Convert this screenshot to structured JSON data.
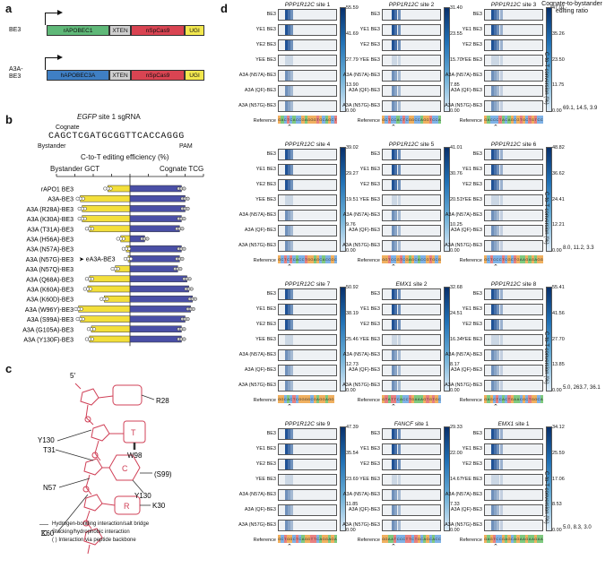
{
  "panel_a": {
    "letter": "a",
    "constructs": [
      {
        "name": "BE3",
        "segments": [
          {
            "label": "rAPOBEC1",
            "color": "#5fb878"
          },
          {
            "label": "XTEN",
            "color": "#cfcfcf"
          },
          {
            "label": "nSpCas9",
            "color": "#d94452"
          },
          {
            "label": "UGI",
            "color": "#f3e84e"
          }
        ]
      },
      {
        "name": "A3A-\nBE3",
        "segments": [
          {
            "label": "hAPOBEC3A",
            "color": "#3f7fc4"
          },
          {
            "label": "XTEN",
            "color": "#cfcfcf"
          },
          {
            "label": "nSpCas9",
            "color": "#d94452"
          },
          {
            "label": "UGI",
            "color": "#f3e84e"
          }
        ]
      }
    ]
  },
  "panel_b": {
    "letter": "b",
    "sgrna_title_italic": "EGFP",
    "sgrna_title_rest": " site 1 sgRNA",
    "sequence": "CAGCTCGATGCGGTTCACCAGGG",
    "cognate_label": "Cognate",
    "bystander_label": "Bystander",
    "pam_label": "PAM",
    "xaxis_title": "C-to-T editing efficiency (%)",
    "left_header": "Bystander GCT",
    "right_header": "Cognate TCG",
    "left_ticks": [
      "40",
      "30",
      "20",
      "10",
      "0"
    ],
    "right_ticks": [
      "10",
      "20",
      "30",
      "40"
    ],
    "highlight_label": "eA3A-BE3",
    "bystander_color": "#f3df3b",
    "cognate_color": "#4a4fa6"
  },
  "chart_data": {
    "type": "bar",
    "categories": [
      "rAPO1 BE3",
      "A3A-BE3",
      "A3A (R28A)-BE3",
      "A3A (K30A)-BE3",
      "A3A (T31A)-BE3",
      "A3A (H56A)-BE3",
      "A3A (N57A)-BE3",
      "A3A (N57G)-BE3",
      "A3A (N57Q)-BE3",
      "A3A (Q68A)-BE3",
      "A3A (K60A)-BE3",
      "A3A (K60D)-BE3",
      "A3A (W96Y)-BE3",
      "A3A (S99A)-BE3",
      "A3A (G105A)-BE3",
      "A3A (Y130F)-BE3"
    ],
    "series": [
      {
        "name": "Bystander GCT",
        "values": [
          12,
          27,
          26,
          26,
          22,
          5,
          2,
          1,
          8,
          22,
          23,
          14,
          28,
          27,
          21,
          22
        ]
      },
      {
        "name": "Cognate TCG",
        "values": [
          28,
          30,
          30,
          28,
          27,
          8,
          28,
          27,
          26,
          31,
          32,
          34,
          33,
          30,
          28,
          28
        ]
      }
    ],
    "xlim": [
      -40,
      40
    ]
  },
  "panel_c": {
    "letter": "c",
    "five_prime": "5′",
    "residues": [
      "R28",
      "Y130",
      "T31",
      "N57",
      "K60",
      "W98",
      "(S99)",
      "Y130",
      "K30"
    ],
    "bases": [
      "T",
      "C",
      "R"
    ],
    "legend": [
      "Hydrogen-bonding interaction/salt bridge",
      "Stacking/hydrophobic interaction",
      "( ) Interaction via peptide backbone"
    ]
  },
  "panel_d": {
    "letter": "d",
    "ratio_header": "Cognate-to-bystander\nediting ratio",
    "conversion_label": "C-to-T conversion (%)",
    "row_labels": [
      "BE3",
      "YE1 BE3",
      "YE2 BE3",
      "YEE BE3",
      "A3A (N57A)-BE3",
      "A3A (QF)-BE3",
      "A3A (N57G)-BE3",
      "Reference"
    ],
    "grid": [
      {
        "ratio": "69.1, 14.5, 3.9",
        "sites": [
          {
            "gene": "PPP1R12C",
            "site": " site 1",
            "max": "55.59",
            "ticks": [
              "41.69",
              "27.79",
              "13.90",
              "0.00"
            ],
            "ref": "GACTCACCGAGGGTGCAGCT"
          },
          {
            "gene": "PPP1R12C",
            "site": " site 2",
            "max": "31.40",
            "ticks": [
              "23.55",
              "15.70",
              "7.85",
              "0.00"
            ],
            "ref": "GCTCCACTCGGCCAGGTCCA"
          },
          {
            "gene": "PPP1R12C",
            "site": " site 3",
            "max": "47.01",
            "ticks": [
              "35.26",
              "23.50",
              "11.75",
              "0.00"
            ],
            "ref": "GACCCTACAGCGTGCTGTCC"
          }
        ]
      },
      {
        "ratio": "8.0, 11.2, 3.3",
        "sites": [
          {
            "gene": "PPP1R12C",
            "site": " site 4",
            "max": "39.02",
            "ticks": [
              "29.27",
              "19.51",
              "9.76",
              "0.00"
            ],
            "ref": "GCTCTCACCTGGAGCACCGC"
          },
          {
            "gene": "PPP1R12C",
            "site": " site 5",
            "max": "41.01",
            "ticks": [
              "30.76",
              "20.51",
              "10.25",
              "0.00"
            ],
            "ref": "GGTCCGTCGAGCACCGTGCG"
          },
          {
            "gene": "PPP1R12C",
            "site": " site 6",
            "max": "48.82",
            "ticks": [
              "36.62",
              "24.41",
              "12.21",
              "0.00"
            ],
            "ref": "GCTCCCTCGCTGAAGAGAGG"
          }
        ]
      },
      {
        "ratio": "5.0, 263.7, 36.1",
        "sites": [
          {
            "gene": "PPP1R12C",
            "site": " site 7",
            "max": "50.92",
            "ticks": [
              "38.19",
              "25.46",
              "12.73",
              "0.00"
            ],
            "ref": "GGCACTCGGGGCGAGGAGG"
          },
          {
            "gene": "EMX1",
            "site": " site 2",
            "max": "32.68",
            "ticks": [
              "24.51",
              "16.34",
              "8.17",
              "0.00"
            ],
            "ref": "GTATTCACCTGAAAGTGTGC"
          },
          {
            "gene": "PPP1R12C",
            "site": " site 8",
            "max": "55.41",
            "ticks": [
              "41.56",
              "27.70",
              "13.85",
              "0.00"
            ],
            "ref": "GAGCTCACTGAACGCTGGCA"
          }
        ]
      },
      {
        "ratio": "5.0, 8.3, 3.0",
        "sites": [
          {
            "gene": "PPP1R12C",
            "site": " site 9",
            "max": "47.39",
            "ticks": [
              "35.54",
              "23.69",
              "11.85",
              "0.00"
            ],
            "ref": "GCTGGCTCAGGTTCAGGAGA"
          },
          {
            "gene": "FANCF",
            "site": " site 1",
            "max": "29.33",
            "ticks": [
              "22.00",
              "14.67",
              "7.33",
              "0.00"
            ],
            "ref": "GGAATCCCTTCTGCAGCACC"
          },
          {
            "gene": "EMX1",
            "site": " site 1",
            "max": "34.12",
            "ticks": [
              "25.59",
              "17.06",
              "8.53",
              "0.00"
            ],
            "ref": "GAGTCCGAGCAGAAGAAGAA"
          }
        ]
      }
    ]
  }
}
